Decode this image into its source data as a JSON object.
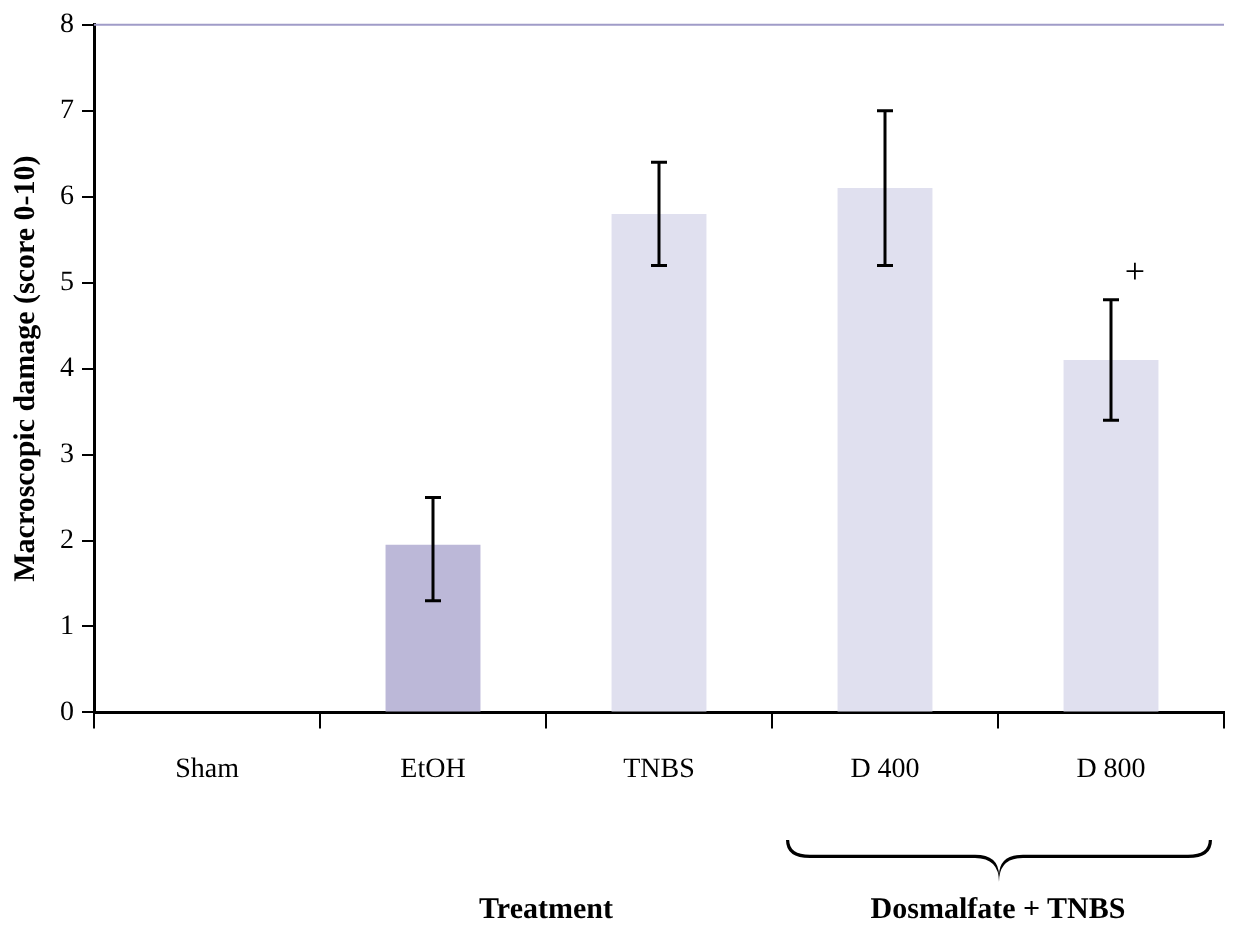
{
  "chart_data": {
    "type": "bar",
    "ylabel": "Macroscopic damage (score 0-10)",
    "xlabel": "Treatment",
    "categories": [
      "Sham",
      "EtOH",
      "TNBS",
      "D 400",
      "D 800"
    ],
    "values": [
      0,
      1.95,
      5.8,
      6.1,
      4.1
    ],
    "colors": [
      "#e0e0ef",
      "#bcb8d8",
      "#e0e0ef",
      "#e0e0ef",
      "#e0e0ef"
    ],
    "errors": [
      null,
      [
        1.3,
        2.5
      ],
      [
        5.2,
        6.4
      ],
      [
        5.2,
        7.0
      ],
      [
        3.4,
        4.8
      ]
    ],
    "ylim": [
      0,
      8
    ],
    "yticks": [
      0,
      1,
      2,
      3,
      4,
      5,
      6,
      7,
      8
    ],
    "grid": false,
    "annotations": [
      "+",
      "Dosmalfate + TNBS"
    ]
  }
}
